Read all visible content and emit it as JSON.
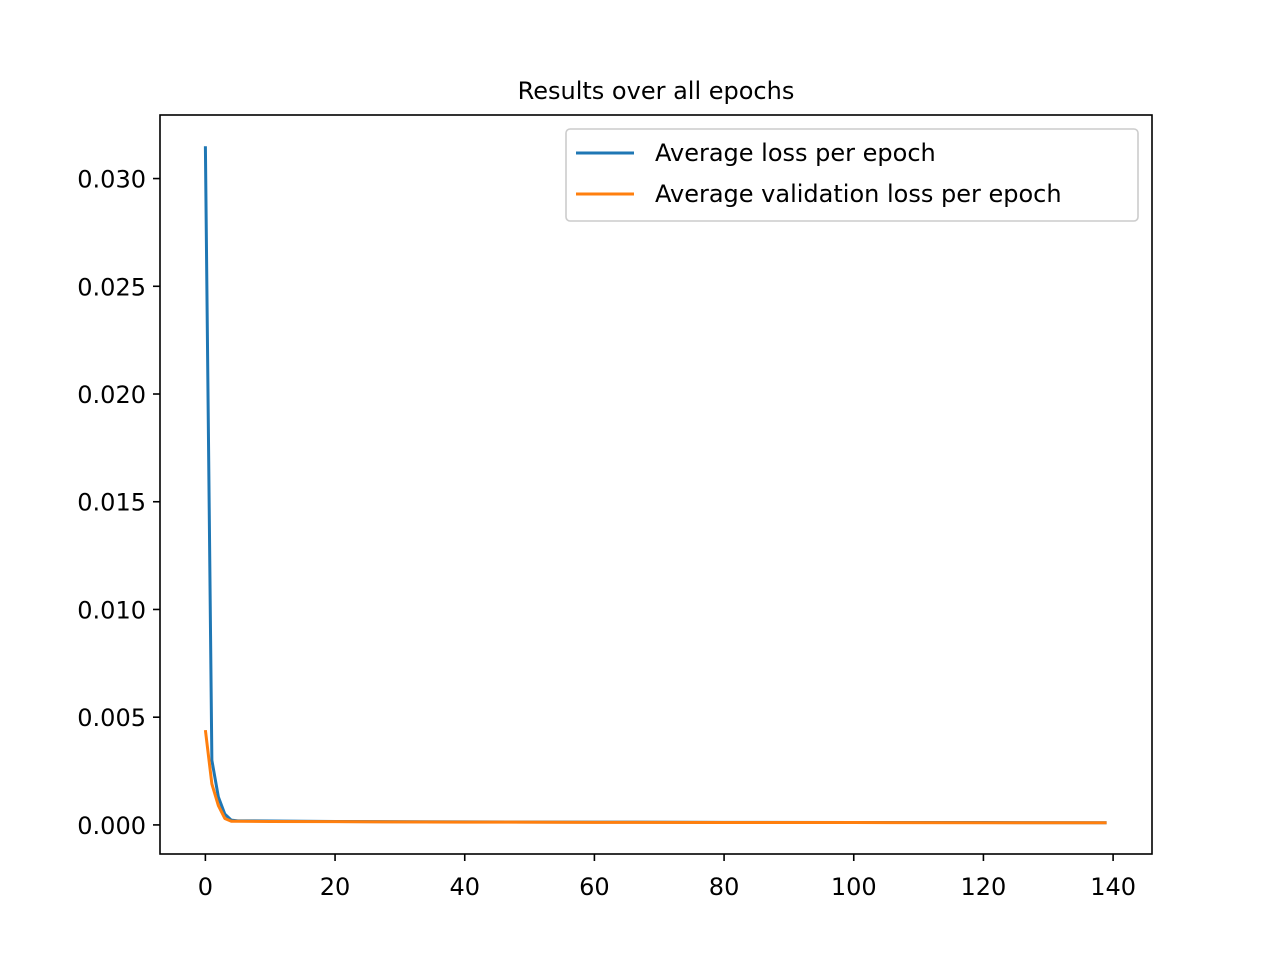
{
  "chart_data": {
    "type": "line",
    "title": "Results over all epochs",
    "xlabel": "",
    "ylabel": "",
    "xlim": [
      -7,
      146
    ],
    "ylim": [
      -0.00135,
      0.03295
    ],
    "x_ticks": [
      0,
      20,
      40,
      60,
      80,
      100,
      120,
      140
    ],
    "y_ticks": [
      0.0,
      0.005,
      0.01,
      0.015,
      0.02,
      0.025,
      0.03
    ],
    "x_tick_labels": [
      "0",
      "20",
      "40",
      "60",
      "80",
      "100",
      "120",
      "140"
    ],
    "y_tick_labels": [
      "0.000",
      "0.005",
      "0.010",
      "0.015",
      "0.020",
      "0.025",
      "0.030"
    ],
    "grid": false,
    "legend": "top-right",
    "series": [
      {
        "name": "Average loss per epoch",
        "color": "#1f77b4",
        "x": [
          0,
          1,
          2,
          3,
          4,
          5,
          10,
          20,
          40,
          60,
          80,
          100,
          120,
          139
        ],
        "y": [
          0.0315,
          0.003,
          0.0013,
          0.0005,
          0.00022,
          0.00019,
          0.00018,
          0.00016,
          0.00014,
          0.00013,
          0.00012,
          0.00011,
          0.00011,
          0.0001
        ]
      },
      {
        "name": "Average validation loss per epoch",
        "color": "#ff7f0e",
        "x": [
          0,
          1,
          2,
          3,
          4,
          5,
          10,
          20,
          40,
          60,
          80,
          100,
          120,
          139
        ],
        "y": [
          0.0044,
          0.0019,
          0.0009,
          0.0003,
          0.00017,
          0.00017,
          0.00016,
          0.00015,
          0.00013,
          0.00012,
          0.00011,
          0.00011,
          0.0001,
          0.0001
        ]
      }
    ]
  }
}
